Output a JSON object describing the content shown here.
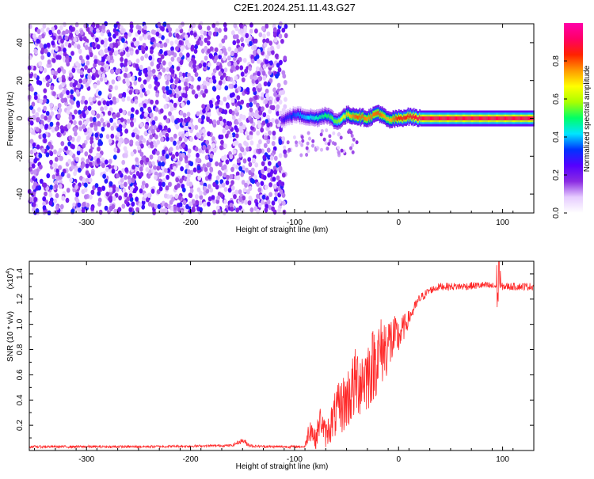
{
  "title": "C2E1.2024.251.11.43.G27",
  "chart_data": [
    {
      "type": "heatmap",
      "title": "C2E1.2024.251.11.43.G27",
      "xlabel": "Height of straight line (km)",
      "ylabel": "Frequency (Hz)",
      "xlim": [
        -355,
        130
      ],
      "ylim": [
        -50,
        50
      ],
      "xticks": [
        -300,
        -200,
        -100,
        0,
        100
      ],
      "yticks": [
        -40,
        -20,
        0,
        20,
        40
      ],
      "description_regions": [
        {
          "x_range": [
            -355,
            -108
          ],
          "y_range": [
            -50,
            50
          ],
          "level": "low (noise, ~0.05-0.25)"
        },
        {
          "x_range": [
            -115,
            130
          ],
          "y_range": [
            -3,
            3
          ],
          "level": "signal band centred near 0 Hz, rising from ~0.3 to ~0.9"
        }
      ],
      "signal_ridge": {
        "x": [
          -113,
          -100,
          -90,
          -80,
          -70,
          -60,
          -50,
          -40,
          -30,
          -20,
          -10,
          0,
          10,
          20,
          40,
          60,
          80,
          100,
          130
        ],
        "center_hz": [
          -1,
          2,
          1,
          0,
          2,
          -2,
          2,
          1,
          0,
          3,
          -1,
          0,
          1,
          0,
          0,
          0,
          0,
          0,
          0
        ],
        "amplitude": [
          0.25,
          0.35,
          0.4,
          0.45,
          0.5,
          0.55,
          0.7,
          0.8,
          0.75,
          0.8,
          0.7,
          0.85,
          0.85,
          0.9,
          0.9,
          0.9,
          0.9,
          0.9,
          0.9
        ]
      },
      "colorbar": {
        "label": "Normalized spectral amplitude",
        "range": [
          0.0,
          1.0
        ],
        "ticks": [
          "0.0",
          "0.2",
          "0.4",
          "0.6",
          "0.8"
        ],
        "tick_values": [
          0.0,
          0.2,
          0.4,
          0.6,
          0.8
        ],
        "colors": [
          "#ffffff",
          "#e6ccff",
          "#8a2be2",
          "#5500ff",
          "#0033ff",
          "#00e5ff",
          "#00ff66",
          "#aaff00",
          "#ffff00",
          "#ff9900",
          "#ff2200",
          "#ff0066",
          "#ff00aa"
        ]
      }
    },
    {
      "type": "line",
      "xlabel": "Height of straight line (km)",
      "ylabel": "SNR (10 * v/v)",
      "exponent_label": "(x10",
      "exponent_value": "4",
      "exponent_close": ")",
      "xlim": [
        -355,
        130
      ],
      "ylim": [
        0,
        1.5
      ],
      "xticks": [
        -300,
        -200,
        -100,
        0,
        100
      ],
      "yticks": [
        0.2,
        0.4,
        0.6,
        0.8,
        1.0,
        1.2,
        1.4
      ],
      "ytick_labels": [
        "0.2",
        "0.4",
        "0.6",
        "0.8",
        "1.0",
        "1.2",
        "1.4"
      ],
      "color": "#ff2a2a",
      "series": [
        {
          "name": "SNR",
          "x": [
            -355,
            -300,
            -250,
            -200,
            -160,
            -150,
            -145,
            -140,
            -120,
            -100,
            -90,
            -85,
            -80,
            -75,
            -70,
            -60,
            -50,
            -40,
            -30,
            -20,
            -10,
            0,
            10,
            20,
            30,
            40,
            60,
            80,
            95,
            100,
            130
          ],
          "y": [
            0.03,
            0.03,
            0.03,
            0.035,
            0.04,
            0.08,
            0.05,
            0.035,
            0.03,
            0.03,
            0.03,
            0.2,
            0.08,
            0.25,
            0.12,
            0.3,
            0.4,
            0.55,
            0.6,
            0.75,
            0.85,
            0.9,
            1.05,
            1.2,
            1.27,
            1.3,
            1.3,
            1.31,
            1.3,
            1.3,
            1.3
          ],
          "spread": [
            0.01,
            0.01,
            0.01,
            0.01,
            0.01,
            0.02,
            0.02,
            0.01,
            0.01,
            0.01,
            0.01,
            0.12,
            0.08,
            0.12,
            0.1,
            0.2,
            0.25,
            0.3,
            0.3,
            0.3,
            0.25,
            0.15,
            0.06,
            0.04,
            0.03,
            0.03,
            0.03,
            0.03,
            0.03,
            0.03,
            0.03
          ]
        }
      ]
    }
  ]
}
